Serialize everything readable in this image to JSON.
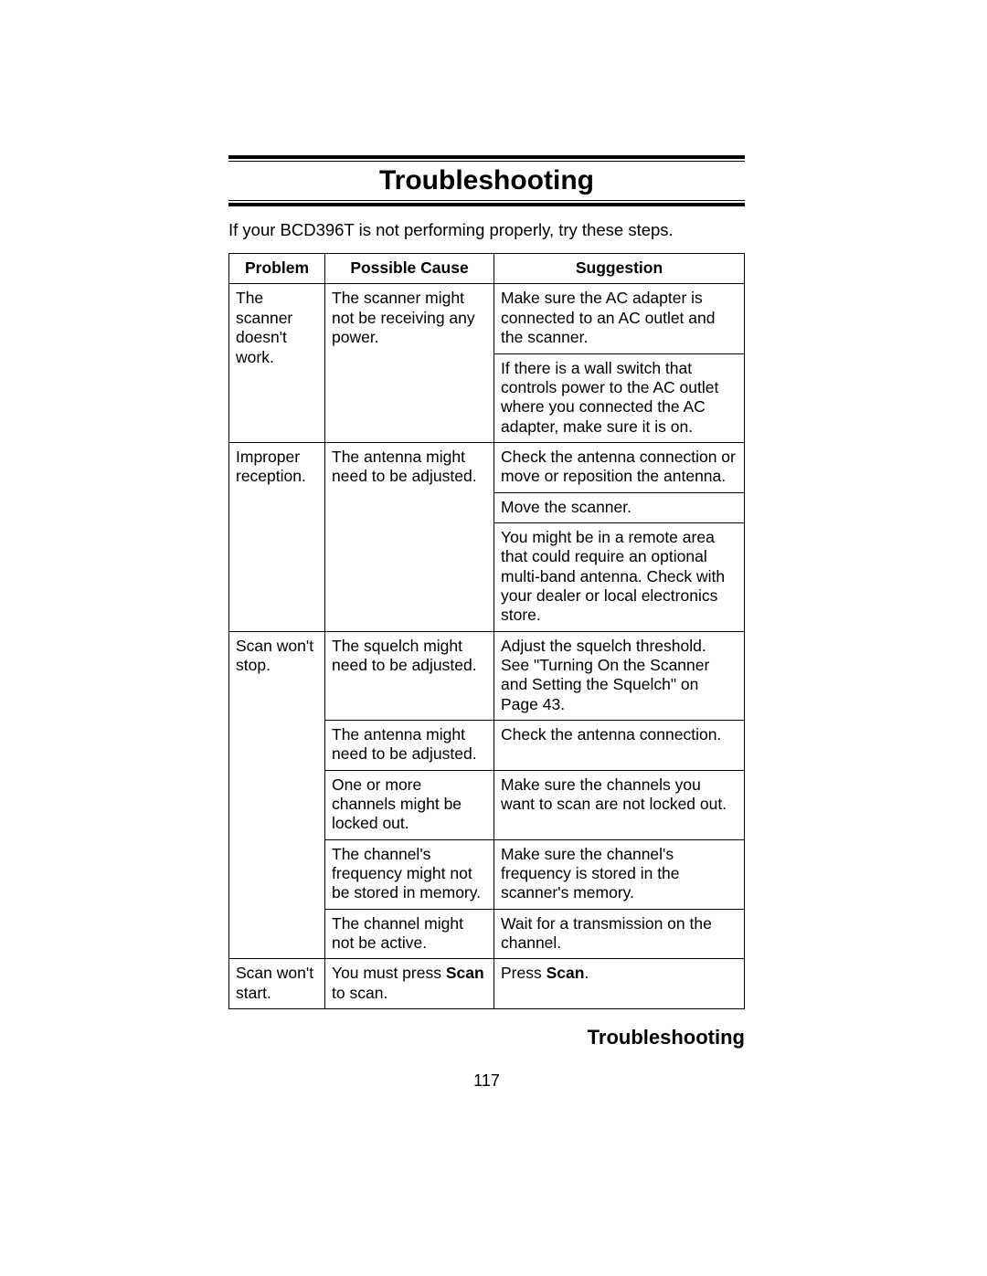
{
  "title": "Troubleshooting",
  "intro": "If your BCD396T is not performing properly, try these steps.",
  "table": {
    "headers": {
      "problem": "Problem",
      "cause": "Possible Cause",
      "suggestion": "Suggestion"
    },
    "rows": {
      "r1": {
        "problem": "The scanner doesn't work.",
        "cause": "The scanner might not be receiving any power.",
        "sugg1": "Make sure the AC adapter is connected to an AC outlet and the scanner.",
        "sugg2": "If there is a wall switch that controls power to the AC outlet where you connected the AC adapter, make sure it is on."
      },
      "r2": {
        "problem": "Improper reception.",
        "cause": "The antenna might need to be adjusted.",
        "sugg1": "Check the antenna connection or move or reposition the antenna.",
        "sugg2": "Move the scanner.",
        "sugg3": "You might be in a remote area that could require an optional multi-band antenna. Check with your dealer or local electronics store."
      },
      "r3": {
        "problem": "Scan won't stop.",
        "c1": "The squelch might need to be adjusted.",
        "s1": "Adjust the squelch threshold. See \"Turning On the Scanner and Setting the Squelch\" on Page 43.",
        "c2": "The antenna might need to be adjusted.",
        "s2": "Check the antenna connection.",
        "c3": "One or more channels might be locked out.",
        "s3": "Make sure the channels you want to scan are not locked out.",
        "c4": "The channel's frequency might not be stored in memory.",
        "s4": "Make sure the channel's frequency is stored in the scanner's memory.",
        "c5": "The channel might not be active.",
        "s5": "Wait for a transmission on the channel."
      },
      "r4": {
        "problem": "Scan won't start.",
        "cause_pre": "You must press ",
        "cause_bold": "Scan",
        "cause_post": " to scan.",
        "sugg_pre": "Press ",
        "sugg_bold": "Scan",
        "sugg_post": "."
      }
    }
  },
  "footer": "Troubleshooting",
  "pageNumber": "117"
}
